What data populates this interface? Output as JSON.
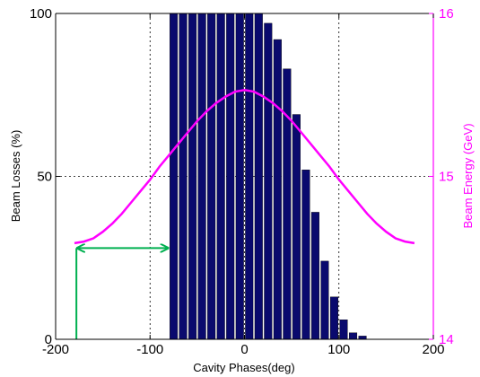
{
  "chart_data": {
    "type": "bar",
    "xlabel": "Cavity Phases(deg)",
    "ylabel": "Beam Losses (%)",
    "y2label": "Beam Energy (GeV)",
    "xlim": [
      -200,
      200
    ],
    "ylim": [
      0,
      100
    ],
    "y2lim": [
      14,
      16
    ],
    "xticks": [
      "-200",
      "-100",
      "0",
      "100",
      "200"
    ],
    "yticks": [
      "0",
      "50",
      "100"
    ],
    "y2ticks": [
      "14",
      "15",
      "16"
    ],
    "grid": "dotted",
    "bar_color": "#0a0a6e",
    "energy_color": "#ff00ff",
    "arrow_color": "#00b050",
    "beam_losses": {
      "x": [
        -80,
        -70,
        -60,
        -50,
        -40,
        -30,
        -20,
        -10,
        0,
        10,
        20,
        30,
        40,
        50,
        60,
        70,
        80,
        90,
        100,
        110,
        120
      ],
      "values": [
        100,
        100,
        100,
        100,
        100,
        100,
        100,
        100,
        100,
        100,
        97,
        92,
        83,
        69,
        52,
        39,
        24,
        13,
        6,
        2,
        1
      ]
    },
    "beam_energy": {
      "x": [
        -180,
        -170,
        -160,
        -150,
        -140,
        -130,
        -120,
        -110,
        -100,
        -90,
        -80,
        -70,
        -60,
        -50,
        -40,
        -30,
        -20,
        -10,
        0,
        10,
        20,
        30,
        40,
        50,
        60,
        70,
        80,
        90,
        100,
        110,
        120,
        130,
        140,
        150,
        160,
        170,
        180
      ],
      "values": [
        14.59,
        14.6,
        14.62,
        14.66,
        14.71,
        14.77,
        14.84,
        14.91,
        14.98,
        15.06,
        15.13,
        15.2,
        15.27,
        15.34,
        15.4,
        15.45,
        15.49,
        15.52,
        15.53,
        15.52,
        15.49,
        15.45,
        15.4,
        15.34,
        15.27,
        15.2,
        15.13,
        15.06,
        14.98,
        14.91,
        14.84,
        14.77,
        14.71,
        14.66,
        14.62,
        14.6,
        14.59
      ]
    },
    "arrow": {
      "x_from": -178,
      "x_to": -80,
      "y": 28
    },
    "marker_line": {
      "x": -178,
      "y_top": 28
    }
  }
}
